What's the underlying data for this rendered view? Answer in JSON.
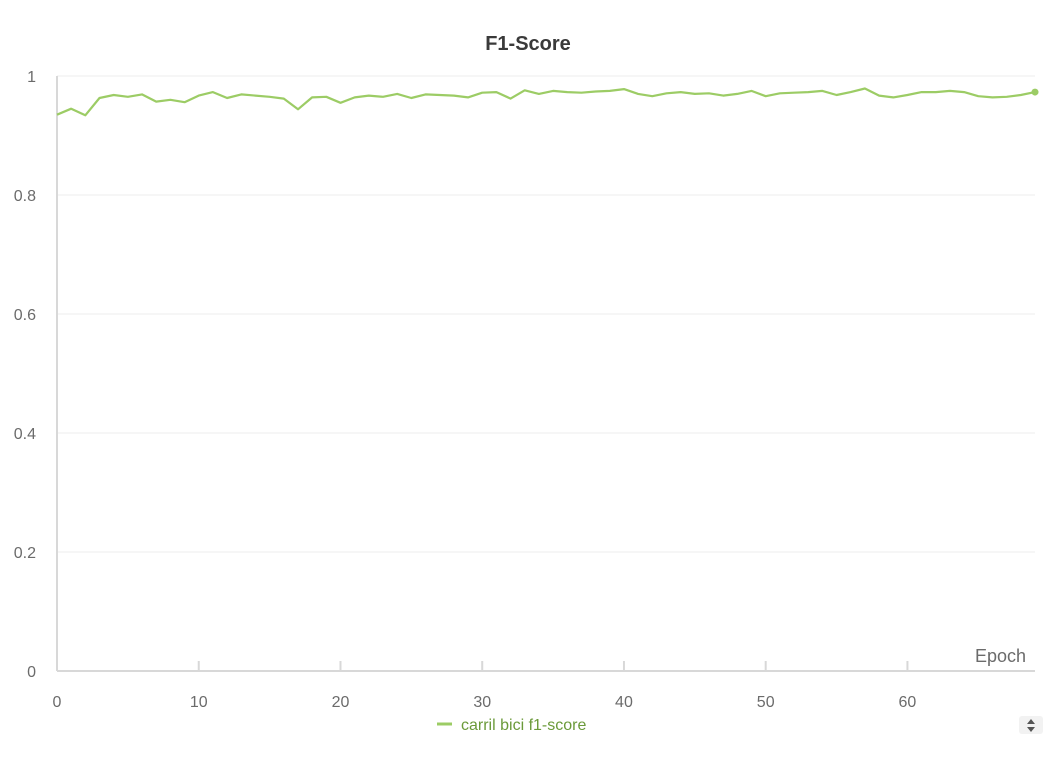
{
  "chart_data": {
    "type": "line",
    "title": "F1-Score",
    "xlabel": "Epoch",
    "ylabel": "",
    "xlim": [
      0,
      69
    ],
    "ylim": [
      0,
      1
    ],
    "x_ticks": [
      0,
      10,
      20,
      30,
      40,
      50,
      60
    ],
    "y_ticks": [
      0,
      0.2,
      0.4,
      0.6,
      0.8,
      1
    ],
    "y_tick_labels": [
      "0",
      "0.2",
      "0.4",
      "0.6",
      "0.8",
      "1"
    ],
    "grid": true,
    "legend_position": "bottom-center",
    "series": [
      {
        "name": "carril bici f1-score",
        "color": "#9ccc65",
        "x": [
          0,
          1,
          2,
          3,
          4,
          5,
          6,
          7,
          8,
          9,
          10,
          11,
          12,
          13,
          14,
          15,
          16,
          17,
          18,
          19,
          20,
          21,
          22,
          23,
          24,
          25,
          26,
          27,
          28,
          29,
          30,
          31,
          32,
          33,
          34,
          35,
          36,
          37,
          38,
          39,
          40,
          41,
          42,
          43,
          44,
          45,
          46,
          47,
          48,
          49,
          50,
          51,
          52,
          53,
          54,
          55,
          56,
          57,
          58,
          59,
          60,
          61,
          62,
          63,
          64,
          65,
          66,
          67,
          68,
          69
        ],
        "values": [
          0.935,
          0.945,
          0.934,
          0.963,
          0.968,
          0.965,
          0.969,
          0.957,
          0.96,
          0.956,
          0.967,
          0.973,
          0.963,
          0.969,
          0.967,
          0.965,
          0.962,
          0.944,
          0.964,
          0.965,
          0.955,
          0.964,
          0.967,
          0.965,
          0.97,
          0.963,
          0.969,
          0.968,
          0.967,
          0.964,
          0.972,
          0.973,
          0.962,
          0.976,
          0.97,
          0.975,
          0.973,
          0.972,
          0.974,
          0.975,
          0.978,
          0.97,
          0.966,
          0.971,
          0.973,
          0.97,
          0.971,
          0.967,
          0.97,
          0.975,
          0.966,
          0.971,
          0.972,
          0.973,
          0.975,
          0.968,
          0.973,
          0.979,
          0.967,
          0.964,
          0.968,
          0.973,
          0.973,
          0.975,
          0.973,
          0.966,
          0.964,
          0.965,
          0.968,
          0.973
        ]
      }
    ]
  },
  "legend_toggle": {
    "icon": "sort-arrows-icon"
  }
}
